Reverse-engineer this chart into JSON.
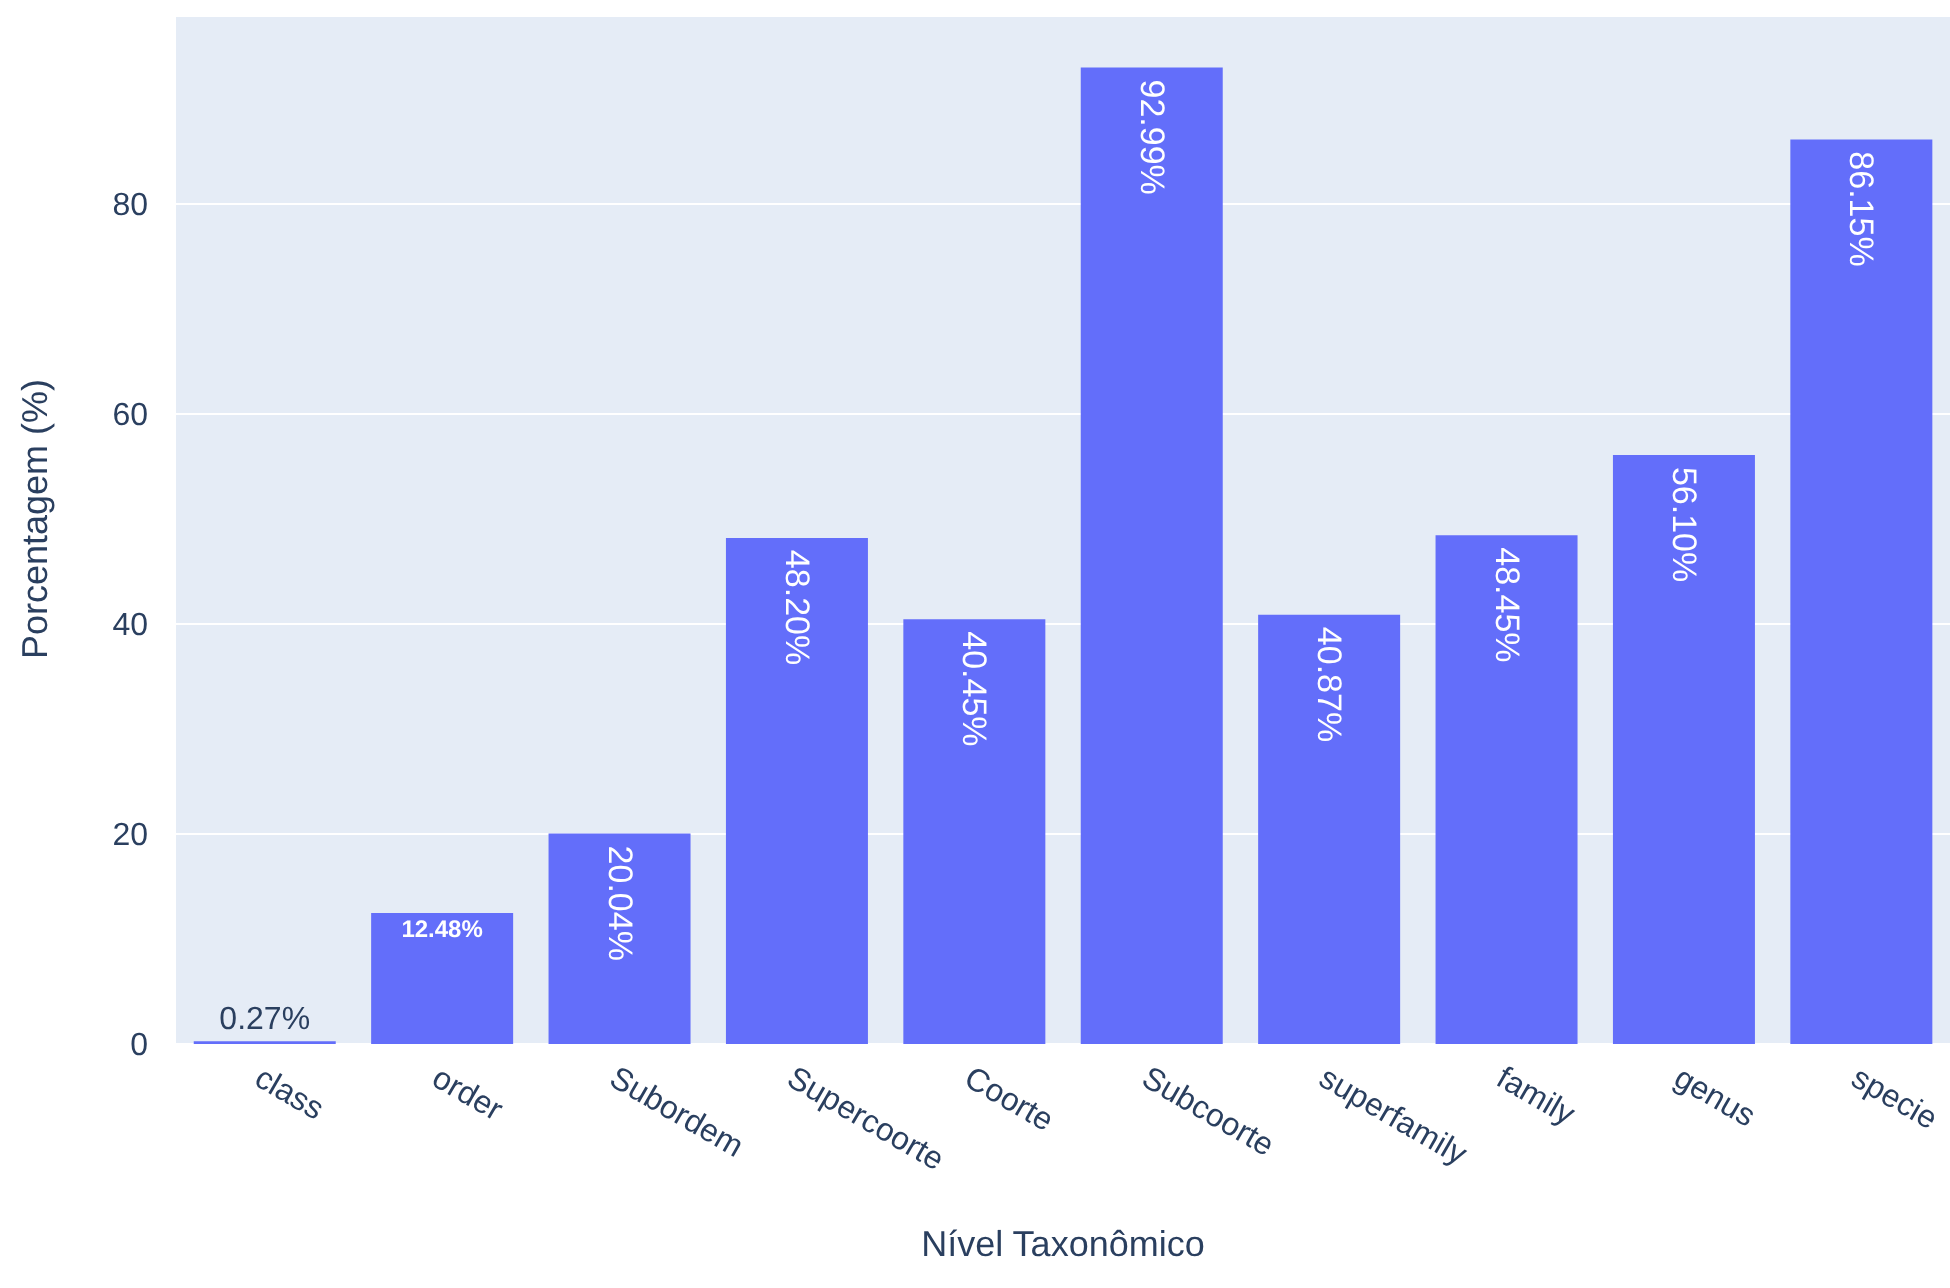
{
  "chart_data": {
    "type": "bar",
    "xlabel": "Nível Taxonômico",
    "ylabel": "Porcentagem (%)",
    "categories": [
      "class",
      "order",
      "Subordem",
      "Supercoorte",
      "Coorte",
      "Subcoorte",
      "superfamily",
      "family",
      "genus",
      "specie"
    ],
    "values": [
      0.27,
      12.48,
      20.04,
      48.2,
      40.45,
      92.99,
      40.87,
      48.45,
      56.1,
      86.15
    ],
    "value_labels": [
      "0.27%",
      "12.48%",
      "20.04%",
      "48.20%",
      "40.45%",
      "92.99%",
      "40.87%",
      "48.45%",
      "56.10%",
      "86.15%"
    ],
    "color": "#636efa",
    "ylim": [
      0,
      97.9
    ],
    "yticks": [
      0,
      20,
      40,
      60,
      80
    ],
    "grid": "y"
  }
}
